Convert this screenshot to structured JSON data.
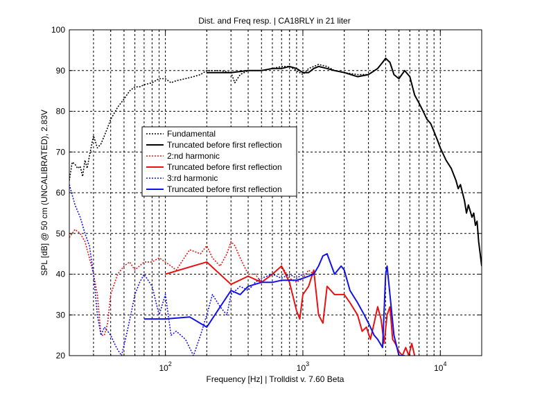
{
  "chart_data": {
    "type": "line",
    "title": "Dist. and Freq resp.  | CA18RLY in 21 liter",
    "xlabel": "Frequency [Hz] | Trolldist v. 7.60 Beta",
    "ylabel": "SPL [dB] @ 50 cm (UNCALIBRATED), 2.83V",
    "xscale": "log",
    "xlim": [
      20,
      20000
    ],
    "ylim": [
      20,
      100
    ],
    "grid": true,
    "legend_position": "upper-left-center",
    "yticks": [
      20,
      30,
      40,
      50,
      60,
      70,
      80,
      90,
      100
    ],
    "ytick_labels": [
      "20",
      "30",
      "40",
      "50",
      "60",
      "70",
      "80",
      "90",
      "100"
    ],
    "xticks_major": [
      100,
      1000,
      10000
    ],
    "xtick_base": "10",
    "xtick_exponents": [
      "2",
      "3",
      "4"
    ],
    "series": [
      {
        "name": "Fundamental",
        "color": "#000000",
        "style": "dotted",
        "x": [
          20,
          21,
          22,
          23,
          24,
          25,
          26,
          27,
          28,
          30,
          32,
          34,
          36,
          38,
          40,
          45,
          50,
          55,
          60,
          65,
          70,
          80,
          90,
          100,
          110,
          120,
          140,
          160,
          180,
          200,
          250,
          300,
          320,
          350,
          400,
          500,
          600,
          700,
          800,
          900,
          1000,
          1100,
          1200,
          1300,
          1500,
          1700,
          2000,
          2500,
          3000,
          3500,
          4000
        ],
        "y": [
          63,
          67.5,
          67,
          66,
          66.5,
          64,
          68,
          66,
          69,
          74,
          71,
          72,
          74,
          76,
          78,
          81,
          83,
          85,
          86,
          86,
          86.5,
          87,
          88,
          88,
          87,
          87.5,
          88,
          88.5,
          89,
          90,
          90,
          89.5,
          87,
          89,
          90,
          90,
          90.5,
          91,
          91,
          90,
          89,
          90.5,
          91,
          91.5,
          91,
          90,
          89.5,
          89,
          89,
          90.5,
          93
        ]
      },
      {
        "name": "Truncated before first reflection",
        "color": "#000000",
        "style": "solid",
        "x": [
          200,
          250,
          300,
          400,
          500,
          600,
          700,
          800,
          900,
          1000,
          1100,
          1200,
          1300,
          1500,
          1700,
          2000,
          2500,
          3000,
          3500,
          3800,
          4000,
          4300,
          4600,
          5000,
          5500,
          6000,
          6500,
          7000,
          7500,
          8000,
          8500,
          9000,
          9500,
          10000,
          11000,
          12000,
          13000,
          13500,
          14000,
          15000,
          15500,
          16000,
          17000,
          17500,
          18000,
          18500,
          19000,
          19500,
          20000
        ],
        "y": [
          89.5,
          89.5,
          89.5,
          90,
          90,
          90.5,
          90.5,
          91,
          90.5,
          89.5,
          89.5,
          90.5,
          91,
          90.5,
          90,
          89.5,
          88.5,
          89,
          90.5,
          92,
          93,
          92,
          89,
          88,
          90,
          88.5,
          84,
          82,
          80,
          78,
          77,
          75,
          73,
          71,
          68,
          66,
          63,
          61,
          62,
          58,
          55,
          57,
          54,
          55,
          52,
          53,
          48,
          45,
          42
        ]
      },
      {
        "name": "2:nd harmonic",
        "color": "#e81010",
        "style": "dotted",
        "x": [
          20,
          22,
          24,
          26,
          28,
          30,
          32,
          34,
          36,
          38,
          40,
          45,
          50,
          55,
          60,
          70,
          80,
          90,
          100,
          110,
          120,
          150,
          180,
          200,
          220,
          250,
          280,
          300,
          320,
          350,
          400,
          450,
          500,
          550,
          600,
          700,
          800,
          900,
          1000,
          1100,
          1200
        ],
        "y": [
          49,
          51,
          50,
          48,
          44,
          40,
          35,
          25,
          25,
          28,
          35,
          40,
          42,
          43,
          41,
          43,
          43,
          44,
          43,
          42,
          41,
          46,
          45,
          47,
          44,
          42,
          45,
          48,
          47,
          44,
          40,
          40,
          38,
          39,
          40,
          42,
          39,
          38,
          39,
          41,
          40
        ]
      },
      {
        "name": "Truncated before first reflection",
        "color": "#e81010",
        "style": "solid",
        "x": [
          100,
          200,
          300,
          400,
          500,
          600,
          700,
          800,
          900,
          950,
          1000,
          1100,
          1200,
          1300,
          1400,
          1500,
          1700,
          2000,
          2200,
          2500,
          2700,
          2900,
          3100,
          3300,
          3500,
          3700,
          3900,
          4100,
          4300,
          4500,
          4700,
          5000,
          5300,
          5600,
          5900,
          6200,
          6500
        ],
        "y": [
          40,
          43,
          37.5,
          39.5,
          38,
          40,
          42,
          38,
          31,
          29,
          35,
          37,
          41,
          30,
          28,
          37,
          35,
          35,
          33,
          30,
          26,
          27,
          24,
          28,
          32,
          29,
          23,
          30,
          32,
          24,
          23,
          21,
          20,
          22,
          20,
          23,
          20
        ]
      },
      {
        "name": "3:rd harmonic",
        "color": "#1010e8",
        "style": "dotted",
        "x": [
          20,
          22,
          24,
          26,
          28,
          30,
          32,
          34,
          36,
          38,
          40,
          44,
          48,
          52,
          56,
          60,
          65,
          70,
          80,
          90,
          100,
          110,
          120,
          140,
          160,
          180,
          200,
          220,
          250,
          280,
          300,
          350,
          400,
          450,
          500,
          600,
          700,
          800,
          900,
          1000,
          1100,
          1200
        ],
        "y": [
          62,
          57,
          54,
          50,
          47,
          40,
          30,
          25,
          27,
          26,
          25,
          22,
          20,
          25,
          30,
          35,
          38,
          40,
          37,
          30,
          35,
          25,
          26,
          24,
          20,
          25,
          30,
          35,
          32,
          30,
          35,
          37,
          36,
          38,
          39,
          40,
          39,
          40,
          39,
          40,
          40,
          40
        ]
      },
      {
        "name": "Truncated before first reflection",
        "color": "#1010e8",
        "style": "solid",
        "x": [
          70,
          100,
          150,
          200,
          300,
          350,
          400,
          500,
          600,
          700,
          800,
          900,
          1000,
          1100,
          1200,
          1300,
          1400,
          1500,
          1700,
          1900,
          2000,
          2200,
          2500,
          2800,
          3000,
          3300,
          3500,
          3800,
          4000,
          4100,
          4300,
          4600,
          5000,
          5500
        ],
        "y": [
          29,
          29,
          29.5,
          27,
          36,
          35,
          37,
          38,
          38,
          38.5,
          38.5,
          38.5,
          39,
          39.5,
          40,
          42,
          44.5,
          45,
          40,
          42,
          41,
          36,
          33,
          30,
          28,
          25,
          24,
          22,
          40,
          42,
          35,
          25,
          20,
          20
        ]
      }
    ]
  }
}
